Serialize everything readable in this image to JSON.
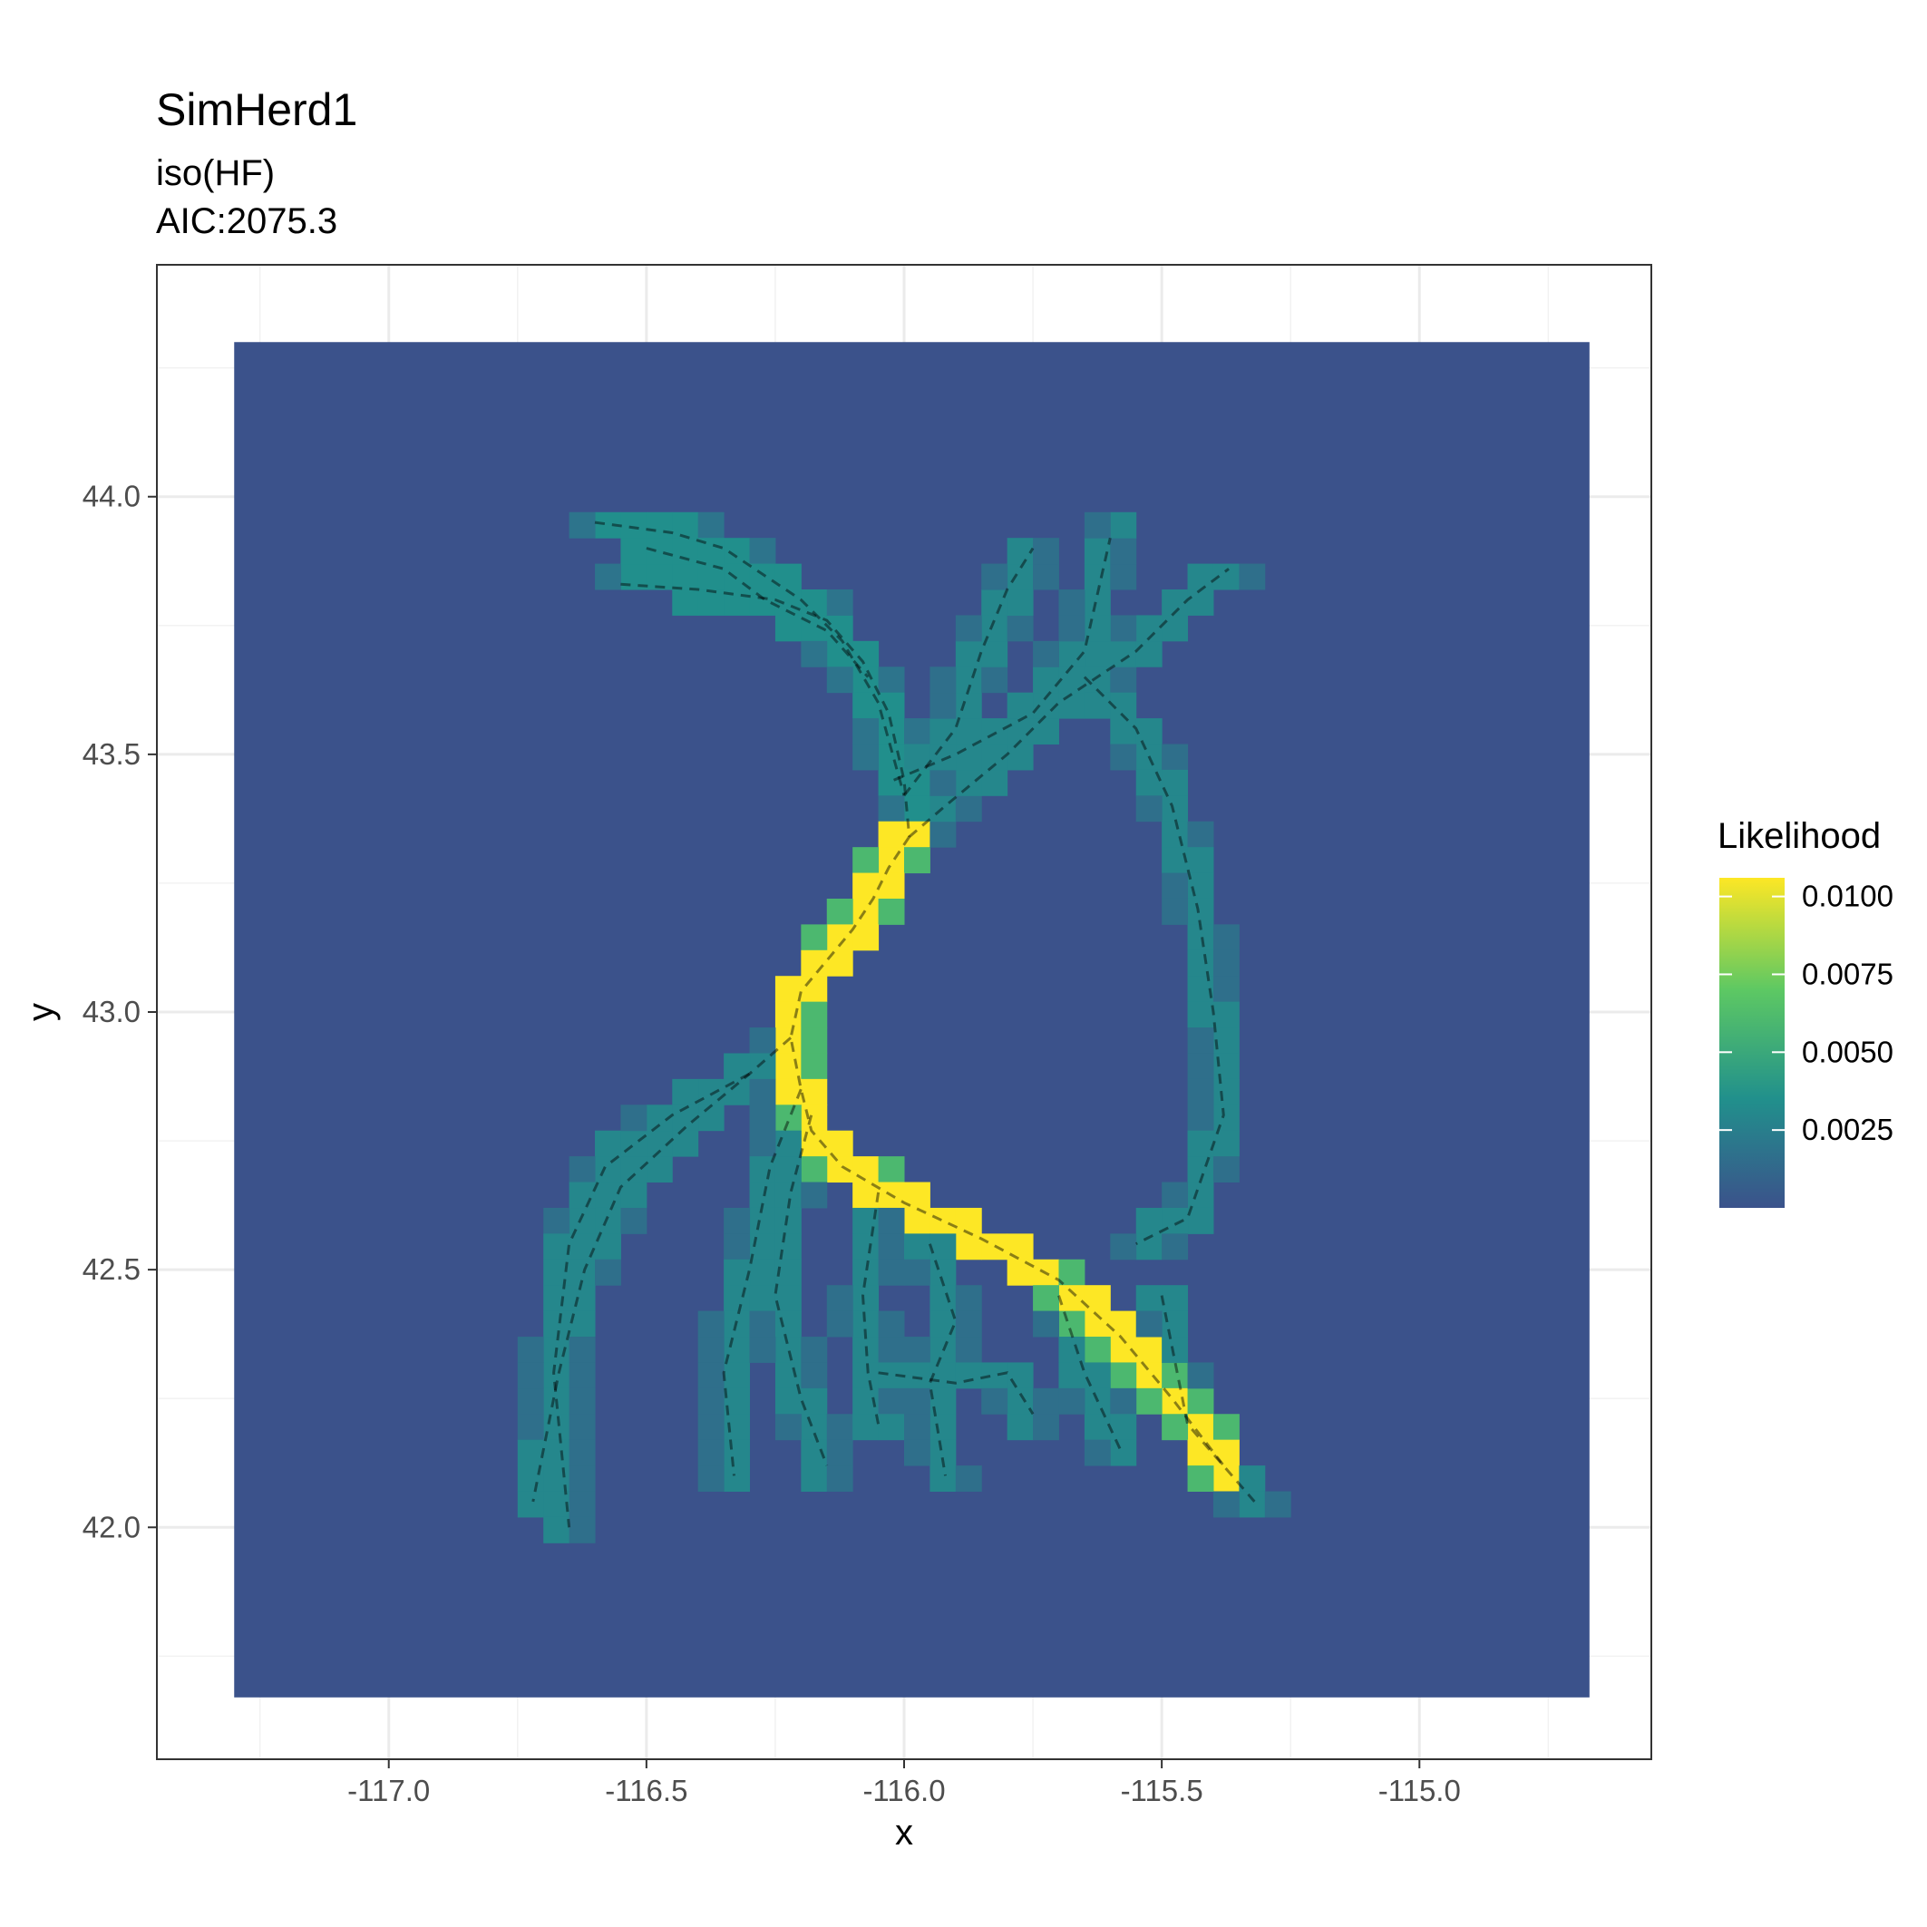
{
  "chart_data": {
    "type": "heatmap",
    "title": "SimHerd1",
    "subtitle_lines": [
      "iso(HF)",
      "AIC:2075.3"
    ],
    "xlabel": "x",
    "ylabel": "y",
    "xlim": [
      -117.45,
      -114.55
    ],
    "ylim": [
      41.55,
      44.45
    ],
    "raster_extent": {
      "x": [
        -117.3,
        -114.67
      ],
      "y": [
        41.67,
        44.3
      ]
    },
    "x_ticks": [
      -117.0,
      -116.5,
      -116.0,
      -115.5,
      -115.0
    ],
    "x_tick_labels": [
      "-117.0",
      "-116.5",
      "-116.0",
      "-115.5",
      "-115.0"
    ],
    "y_ticks": [
      42.0,
      42.5,
      43.0,
      43.5,
      44.0
    ],
    "y_tick_labels": [
      "42.0",
      "42.5",
      "43.0",
      "43.5",
      "44.0"
    ],
    "grid": true,
    "background_likelihood": 0.0,
    "colorscale": [
      "#440154",
      "#3b528b",
      "#21908c",
      "#5dc863",
      "#fde725"
    ],
    "legend": {
      "title": "Likelihood",
      "position": "right",
      "breaks": [
        0.0025,
        0.005,
        0.0075,
        0.01
      ],
      "labels": [
        "0.0025",
        "0.0050",
        "0.0075",
        "0.0100"
      ],
      "range": [
        0.0,
        0.0106
      ]
    },
    "track_paths": [
      {
        "values": 0.0035,
        "points": [
          [
            -116.55,
            43.83
          ],
          [
            -116.4,
            43.82
          ],
          [
            -116.25,
            43.8
          ],
          [
            -116.15,
            43.76
          ],
          [
            -116.08,
            43.68
          ],
          [
            -116.03,
            43.58
          ],
          [
            -116.0,
            43.45
          ],
          [
            -115.99,
            43.34
          ]
        ]
      },
      {
        "values": 0.0035,
        "points": [
          [
            -116.6,
            43.95
          ],
          [
            -116.45,
            43.93
          ],
          [
            -116.35,
            43.9
          ],
          [
            -116.2,
            43.8
          ],
          [
            -116.12,
            43.72
          ],
          [
            -116.05,
            43.6
          ],
          [
            -116.0,
            43.42
          ]
        ]
      },
      {
        "values": 0.0035,
        "points": [
          [
            -116.5,
            43.9
          ],
          [
            -116.35,
            43.86
          ],
          [
            -116.27,
            43.8
          ],
          [
            -116.15,
            43.74
          ],
          [
            -116.07,
            43.65
          ]
        ]
      },
      {
        "values": 0.011,
        "points": [
          [
            -115.99,
            43.34
          ],
          [
            -116.03,
            43.28
          ],
          [
            -116.06,
            43.22
          ],
          [
            -116.1,
            43.16
          ],
          [
            -116.15,
            43.1
          ],
          [
            -116.2,
            43.04
          ],
          [
            -116.22,
            42.95
          ],
          [
            -116.2,
            42.85
          ],
          [
            -116.18,
            42.77
          ],
          [
            -116.12,
            42.7
          ],
          [
            -116.0,
            42.63
          ],
          [
            -115.85,
            42.56
          ],
          [
            -115.7,
            42.48
          ],
          [
            -115.58,
            42.37
          ],
          [
            -115.48,
            42.25
          ],
          [
            -115.38,
            42.12
          ]
        ]
      },
      {
        "values": 0.003,
        "points": [
          [
            -116.22,
            42.95
          ],
          [
            -116.3,
            42.88
          ],
          [
            -116.42,
            42.78
          ],
          [
            -116.55,
            42.66
          ],
          [
            -116.62,
            42.5
          ],
          [
            -116.67,
            42.3
          ],
          [
            -116.72,
            42.05
          ]
        ]
      },
      {
        "values": 0.003,
        "points": [
          [
            -116.3,
            42.88
          ],
          [
            -116.45,
            42.8
          ],
          [
            -116.58,
            42.7
          ],
          [
            -116.65,
            42.55
          ],
          [
            -116.68,
            42.3
          ],
          [
            -116.65,
            42.0
          ]
        ]
      },
      {
        "values": 0.003,
        "points": [
          [
            -116.2,
            42.85
          ],
          [
            -116.26,
            42.7
          ],
          [
            -116.3,
            42.5
          ],
          [
            -116.35,
            42.3
          ],
          [
            -116.33,
            42.1
          ]
        ]
      },
      {
        "values": 0.003,
        "points": [
          [
            -116.18,
            42.8
          ],
          [
            -116.22,
            42.65
          ],
          [
            -116.25,
            42.45
          ],
          [
            -116.2,
            42.25
          ],
          [
            -116.15,
            42.12
          ]
        ]
      },
      {
        "values": 0.003,
        "points": [
          [
            -116.05,
            42.65
          ],
          [
            -116.08,
            42.45
          ],
          [
            -116.07,
            42.3
          ],
          [
            -116.05,
            42.2
          ]
        ]
      },
      {
        "values": 0.003,
        "points": [
          [
            -115.95,
            42.55
          ],
          [
            -115.9,
            42.4
          ],
          [
            -115.95,
            42.28
          ],
          [
            -115.92,
            42.1
          ]
        ]
      },
      {
        "values": 0.003,
        "points": [
          [
            -116.05,
            42.3
          ],
          [
            -115.9,
            42.28
          ],
          [
            -115.8,
            42.3
          ],
          [
            -115.75,
            42.22
          ]
        ]
      },
      {
        "values": 0.003,
        "points": [
          [
            -115.99,
            43.34
          ],
          [
            -115.92,
            43.4
          ],
          [
            -115.8,
            43.5
          ],
          [
            -115.7,
            43.6
          ],
          [
            -115.55,
            43.7
          ],
          [
            -115.45,
            43.8
          ],
          [
            -115.37,
            43.86
          ]
        ]
      },
      {
        "values": 0.003,
        "points": [
          [
            -116.02,
            43.45
          ],
          [
            -115.9,
            43.5
          ],
          [
            -115.75,
            43.58
          ],
          [
            -115.65,
            43.7
          ],
          [
            -115.6,
            43.92
          ]
        ]
      },
      {
        "values": 0.003,
        "points": [
          [
            -116.0,
            43.42
          ],
          [
            -115.9,
            43.55
          ],
          [
            -115.85,
            43.7
          ],
          [
            -115.8,
            43.82
          ],
          [
            -115.75,
            43.9
          ]
        ]
      },
      {
        "values": 0.003,
        "points": [
          [
            -115.65,
            43.65
          ],
          [
            -115.55,
            43.55
          ],
          [
            -115.48,
            43.4
          ],
          [
            -115.43,
            43.2
          ],
          [
            -115.4,
            43.0
          ],
          [
            -115.38,
            42.8
          ],
          [
            -115.45,
            42.6
          ],
          [
            -115.55,
            42.55
          ]
        ]
      },
      {
        "values": 0.003,
        "points": [
          [
            -115.5,
            42.45
          ],
          [
            -115.48,
            42.35
          ],
          [
            -115.45,
            42.2
          ],
          [
            -115.32,
            42.05
          ]
        ]
      },
      {
        "values": 0.003,
        "points": [
          [
            -115.7,
            42.45
          ],
          [
            -115.65,
            42.3
          ],
          [
            -115.58,
            42.15
          ]
        ]
      }
    ]
  }
}
